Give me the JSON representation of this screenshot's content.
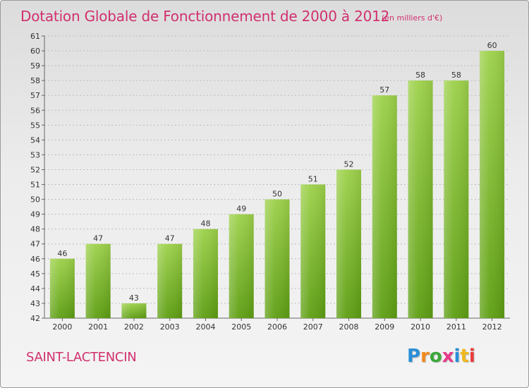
{
  "title": "Dotation Globale de Fonctionnement de 2000 à 2012",
  "unit": "(en milliers d'€)",
  "commune": "SAINT-LACTENCIN",
  "logo": {
    "letters": [
      {
        "ch": "P",
        "color": "#2a8fd8"
      },
      {
        "ch": "r",
        "color": "#f08a1c"
      },
      {
        "ch": "o",
        "color": "#3aa83a"
      },
      {
        "ch": "x",
        "color": "#e83a8a"
      },
      {
        "ch": "i",
        "color": "#2a8fd8"
      },
      {
        "ch": "t",
        "color": "#f0b81c"
      },
      {
        "ch": "i",
        "color": "#e83a3a"
      }
    ]
  },
  "colors": {
    "title": "#d0306e",
    "bar_top": "#9dd14a",
    "bar_bottom": "#5d9e12",
    "grid": "#bdbdbd"
  },
  "chart_data": {
    "type": "bar",
    "title": "Dotation Globale de Fonctionnement de 2000 à 2012",
    "ylabel": "(en milliers d'€)",
    "xlabel": "",
    "categories": [
      "2000",
      "2001",
      "2002",
      "2003",
      "2004",
      "2005",
      "2006",
      "2007",
      "2008",
      "2009",
      "2010",
      "2011",
      "2012"
    ],
    "values": [
      46,
      47,
      43,
      47,
      48,
      49,
      50,
      51,
      52,
      57,
      58,
      58,
      60
    ],
    "ylim": [
      42,
      61
    ],
    "yticks": [
      42,
      43,
      44,
      45,
      46,
      47,
      48,
      49,
      50,
      51,
      52,
      53,
      54,
      55,
      56,
      57,
      58,
      59,
      60,
      61
    ],
    "grid": true,
    "legend": "none"
  }
}
